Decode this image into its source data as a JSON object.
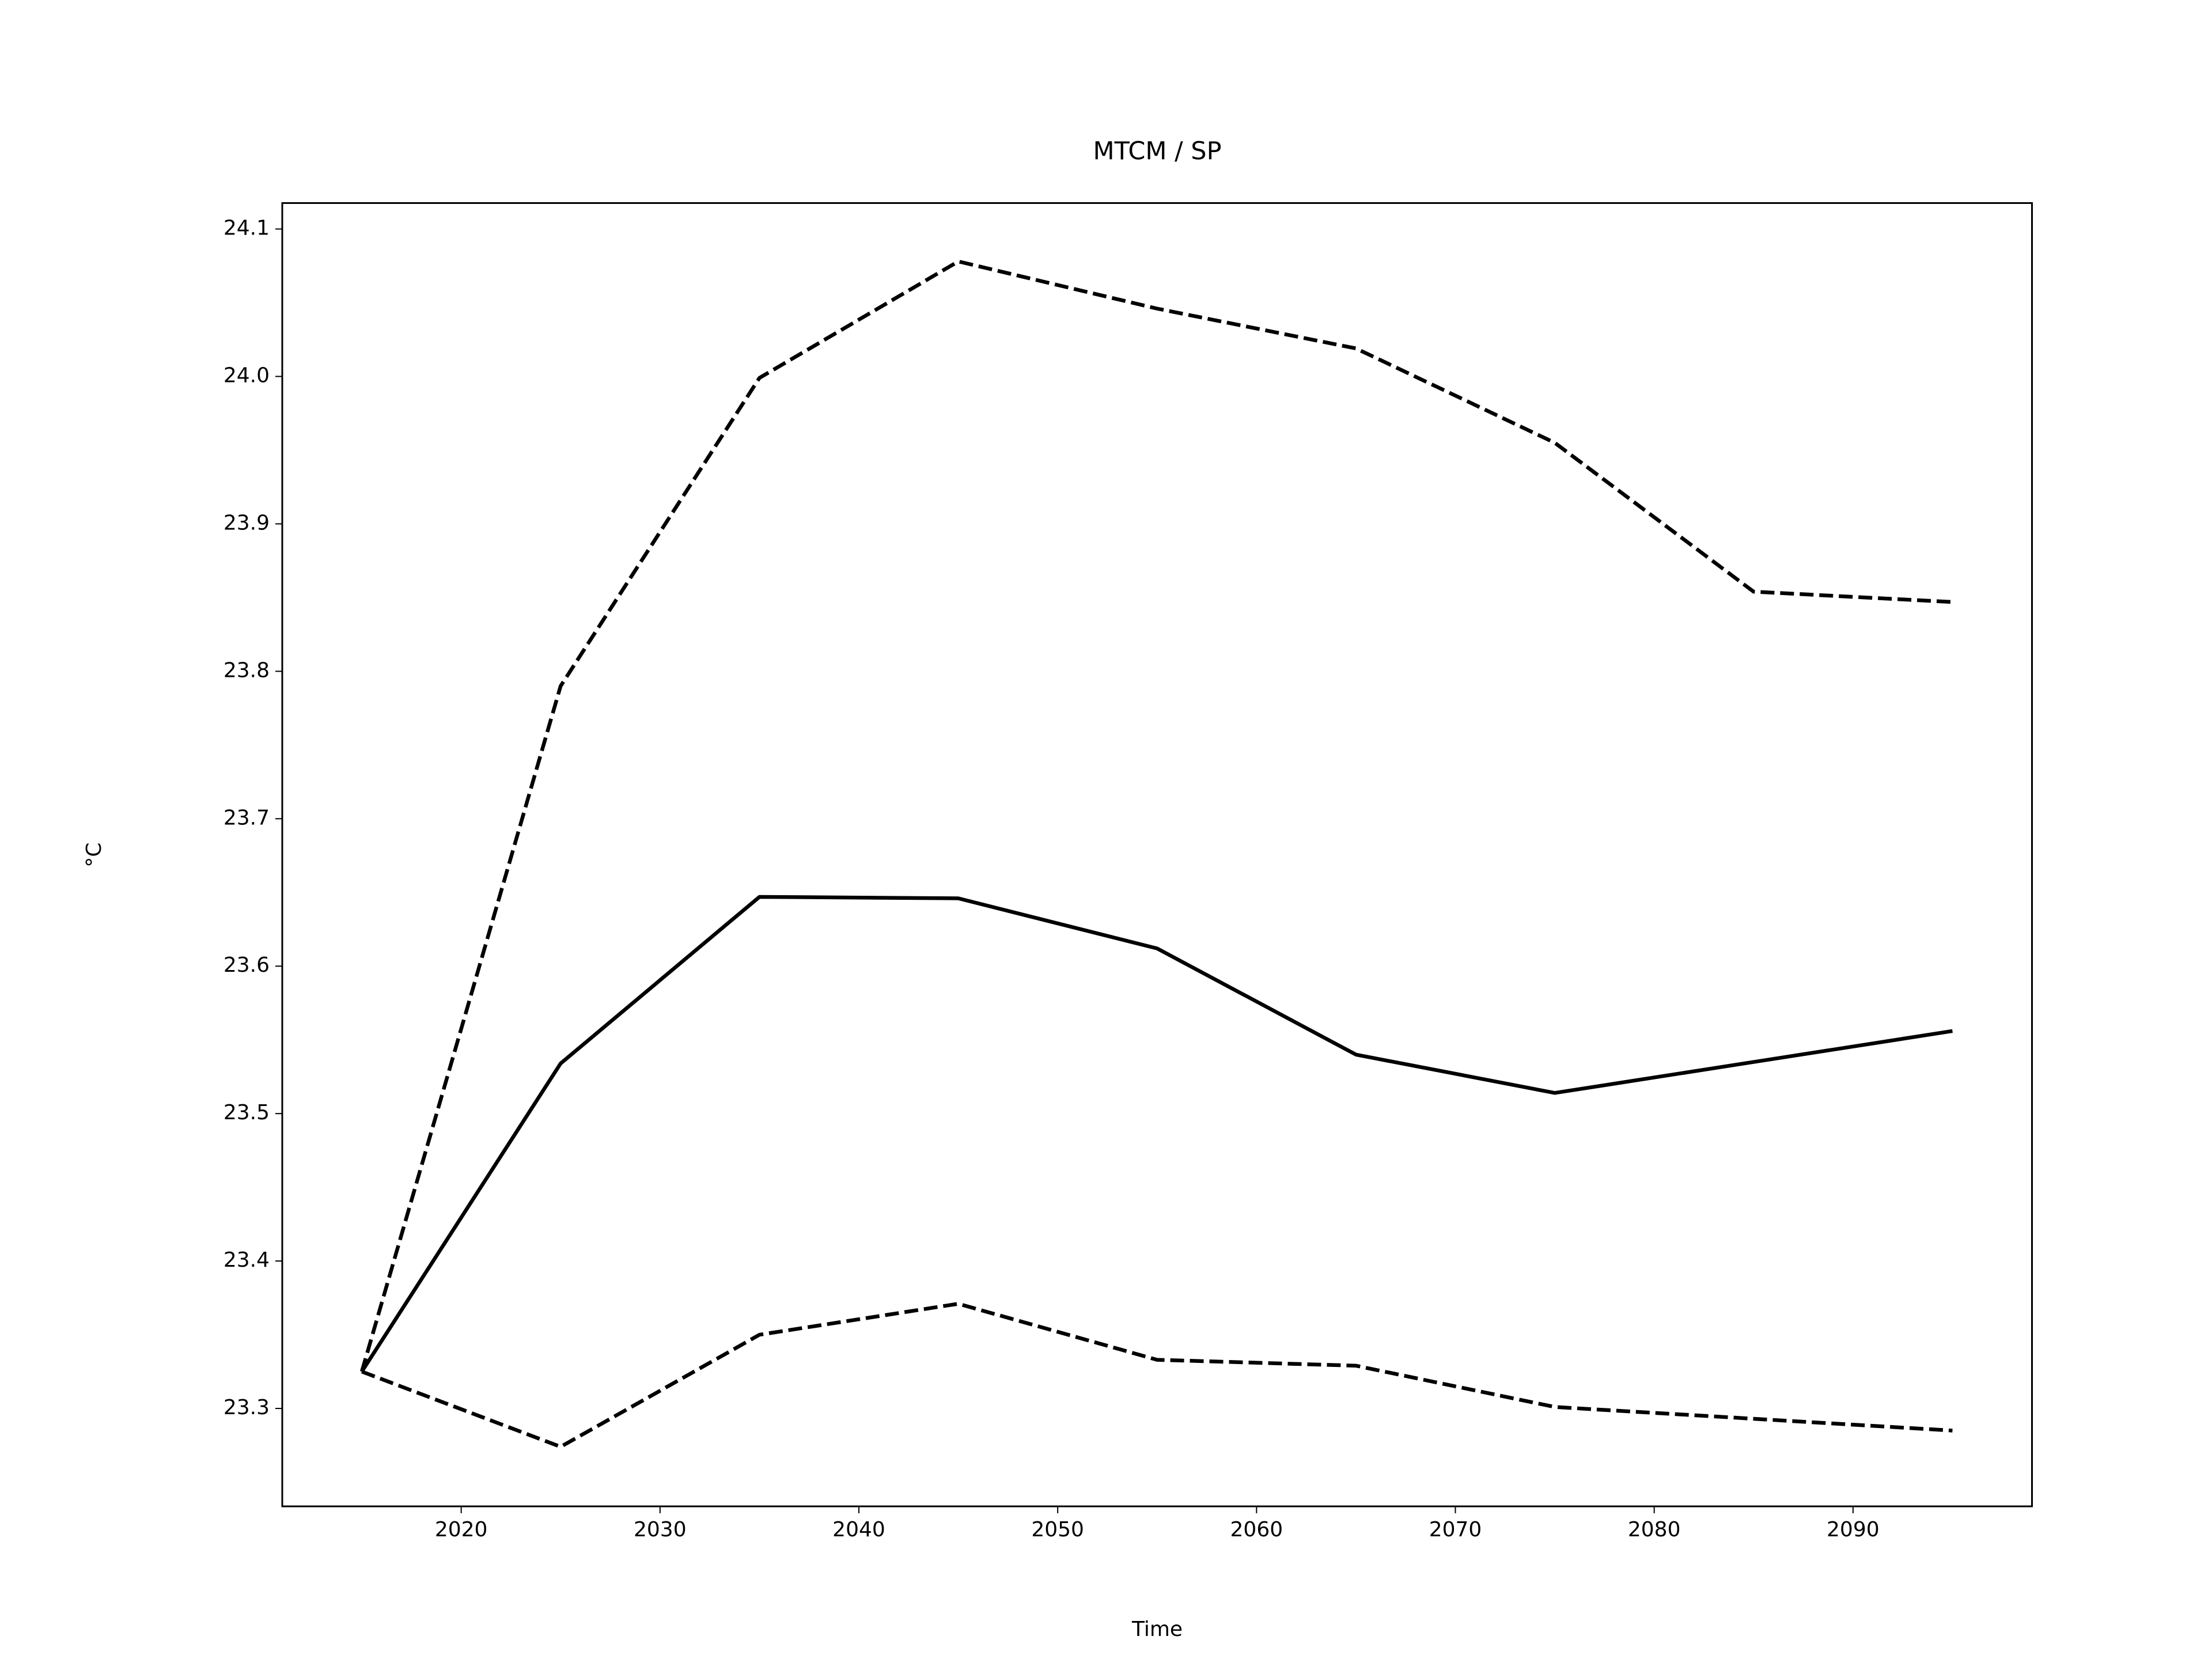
{
  "chart_data": {
    "type": "line",
    "title": "MTCM / SP",
    "xlabel": "Time",
    "ylabel": "°C",
    "x": [
      2015,
      2025,
      2035,
      2045,
      2055,
      2065,
      2075,
      2085,
      2095
    ],
    "series": [
      {
        "color": "#000000",
        "linestyle": "solid",
        "values": [
          23.325,
          23.534,
          23.647,
          23.646,
          23.612,
          23.54,
          23.514,
          23.535,
          23.556
        ]
      },
      {
        "color": "#000000",
        "linestyle": "dashed",
        "values": [
          23.325,
          23.79,
          23.999,
          24.078,
          24.046,
          24.019,
          23.955,
          23.854,
          23.847
        ]
      },
      {
        "color": "#000000",
        "linestyle": "dashed",
        "values": [
          23.325,
          23.274,
          23.35,
          23.371,
          23.333,
          23.329,
          23.301,
          23.293,
          23.285
        ]
      }
    ],
    "xlim": [
      2011,
      2099
    ],
    "xticks": [
      2020,
      2030,
      2040,
      2050,
      2060,
      2070,
      2080,
      2090
    ],
    "ylim": [
      23.2336,
      24.1176
    ],
    "yticks": [
      23.3,
      23.4,
      23.5,
      23.6,
      23.7,
      23.8,
      23.9,
      {
        "value": 24,
        "label": "24.0"
      },
      24.1
    ],
    "grid": false
  }
}
